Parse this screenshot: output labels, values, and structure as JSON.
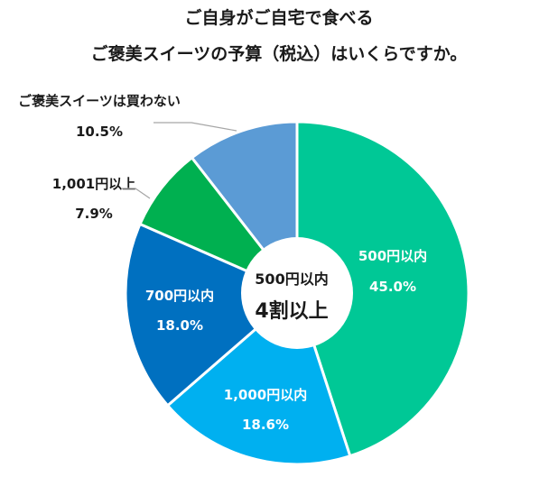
{
  "title": {
    "line1": "ご自身がご自宅で食べる",
    "line2": "ご褒美スイーツの予算（税込）はいくらですか。"
  },
  "center_label": {
    "line1": "500円以内",
    "line2": "4割以上"
  },
  "chart_data": {
    "type": "pie",
    "donut": true,
    "unit": "%",
    "slices": [
      {
        "label": "500円以内",
        "value": 45.0,
        "value_text": "45.0%",
        "color": "#00c896"
      },
      {
        "label": "1,000円以内",
        "value": 18.6,
        "value_text": "18.6%",
        "color": "#00b0f0"
      },
      {
        "label": "700円以内",
        "value": 18.0,
        "value_text": "18.0%",
        "color": "#0070c0"
      },
      {
        "label": "1,001円以上",
        "value": 7.9,
        "value_text": "7.9%",
        "color": "#00b050"
      },
      {
        "label": "ご褒美スイーツは買わない",
        "value": 10.5,
        "value_text": "10.5%",
        "color": "#5b9bd5"
      }
    ],
    "start": "12 o'clock",
    "direction": "clockwise"
  }
}
